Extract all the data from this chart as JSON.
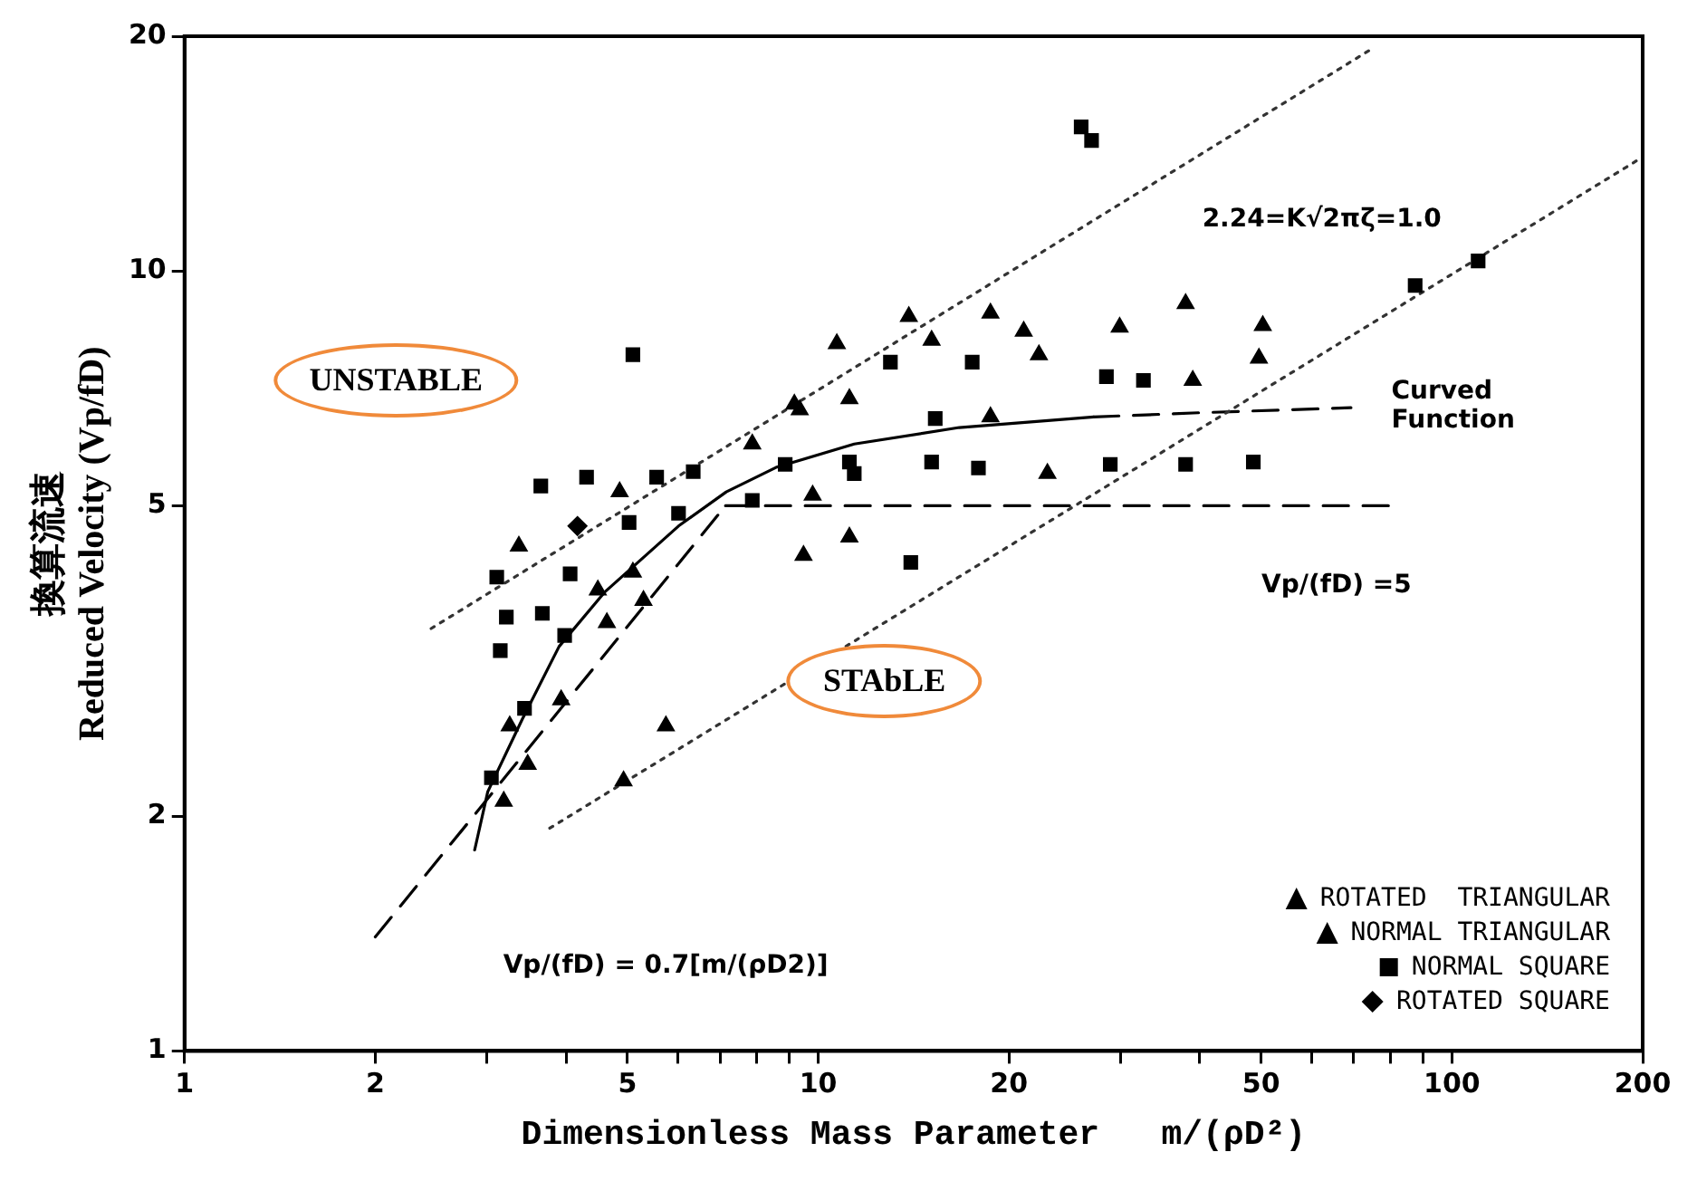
{
  "chart_data": {
    "type": "scatter",
    "xlabel": "Dimensionless Mass Parameter   m/(ρD²)",
    "ylabel": "換算流速\nReduced Velocity (Vp/fD)",
    "log": "xy",
    "xlim": [
      1,
      200
    ],
    "ylim": [
      1,
      20
    ],
    "xticks": [
      1,
      2,
      {
        "value": 3,
        "label": null
      },
      {
        "value": 4,
        "label": null
      },
      5,
      {
        "value": 6,
        "label": null
      },
      {
        "value": 7,
        "label": null
      },
      {
        "value": 8,
        "label": null
      },
      {
        "value": 9,
        "label": null
      },
      10,
      20,
      {
        "value": 30,
        "label": null
      },
      {
        "value": 40,
        "label": null
      },
      50,
      {
        "value": 60,
        "label": null
      },
      {
        "value": 70,
        "label": null
      },
      {
        "value": 80,
        "label": null
      },
      {
        "value": 90,
        "label": null
      },
      100,
      200
    ],
    "yticks": [
      1,
      2,
      5,
      10,
      20
    ],
    "grid": false,
    "legend": "bottom right",
    "series": [
      {
        "name": "ROTATED  TRIANGULAR",
        "color": "#000000",
        "marker": "triangle",
        "x": [
          3.19,
          3.48,
          3.93,
          4.64,
          5.3,
          5.75,
          4.93,
          9.48,
          11.2,
          9.8,
          18.7,
          23,
          39,
          49.6,
          13.9
        ],
        "values": [
          2.09,
          2.33,
          2.82,
          3.54,
          3.78,
          2.61,
          2.22,
          4.32,
          4.56,
          5.16,
          6.5,
          5.5,
          7.24,
          7.73,
          8.74
        ]
      },
      {
        "name": "NORMAL TRIANGULAR",
        "color": "#000000",
        "marker": "triangle",
        "x": [
          18.7,
          21.1,
          22.3,
          29.9,
          38,
          50.3,
          10.7,
          15.1,
          9.17,
          7.87,
          9.35,
          5.1,
          4.49,
          3.26,
          3.37,
          4.86,
          11.2
        ],
        "values": [
          8.83,
          8.37,
          7.81,
          8.47,
          9.08,
          8.51,
          8.07,
          8.15,
          6.75,
          6.0,
          6.64,
          4.11,
          3.9,
          2.61,
          4.44,
          5.21,
          6.86
        ]
      },
      {
        "name": "NORMAL SQUARE",
        "color": "#000000",
        "marker": "square",
        "x": [
          3.11,
          3.22,
          3.67,
          4.06,
          3.98,
          3.15,
          3.44,
          3.05,
          5.03,
          5.56,
          6.35,
          6.02,
          7.87,
          11.4,
          3.65,
          4.31,
          5.1,
          15.3,
          15.1,
          17.9,
          28.9,
          38,
          48.6,
          11.2,
          8.87,
          28.5,
          32.6,
          87.5,
          110,
          13,
          17.5,
          14,
          26,
          27
        ],
        "values": [
          4.05,
          3.6,
          3.64,
          4.09,
          3.41,
          3.26,
          2.75,
          2.24,
          4.76,
          5.44,
          5.53,
          4.89,
          5.08,
          5.5,
          5.3,
          5.44,
          7.81,
          6.47,
          5.69,
          5.59,
          5.65,
          5.65,
          5.69,
          5.69,
          5.65,
          7.32,
          7.24,
          9.58,
          10.3,
          7.64,
          7.64,
          4.23,
          15.3,
          14.7
        ]
      },
      {
        "name": "ROTATED SQUARE",
        "color": "#000000",
        "marker": "diamond",
        "x": [
          4.17
        ],
        "values": [
          4.71
        ]
      },
      {
        "type": "line",
        "color": "#333333",
        "marker": "none",
        "line_style": "dotted",
        "x": [
          2.45,
          75
        ],
        "values": [
          3.48,
          19.3
        ]
      },
      {
        "type": "line",
        "color": "#333333",
        "marker": "none",
        "line_style": "dotted",
        "x": [
          3.77,
          200
        ],
        "values": [
          1.93,
          14
        ]
      },
      {
        "type": "line",
        "color": "#000000",
        "marker": "none",
        "line_style": "dashed",
        "x": [
          2,
          7.14
        ],
        "values": [
          1.4,
          5
        ]
      },
      {
        "type": "line",
        "color": "#000000",
        "marker": "none",
        "line_style": "dashed",
        "x": [
          7.14,
          80
        ],
        "values": [
          5,
          5
        ]
      },
      {
        "type": "line",
        "color": "#000000",
        "marker": "none",
        "line_style": "solid",
        "x": [
          2.87,
          3.01,
          3.41,
          3.9,
          4.61,
          6.02,
          7.16,
          8.58,
          11.4,
          16.7,
          27.2
        ],
        "values": [
          1.81,
          2.15,
          2.66,
          3.3,
          3.88,
          4.71,
          5.21,
          5.6,
          6.0,
          6.3,
          6.5
        ]
      },
      {
        "type": "line",
        "color": "#000000",
        "marker": "none",
        "line_style": "dashed",
        "x": [
          27.2,
          39.8,
          69.3
        ],
        "values": [
          6.5,
          6.58,
          6.68
        ]
      }
    ],
    "annotations": [
      "UNSTABLE",
      "STAbLE",
      "Curved\nFunction",
      "Vp/(fD) =5",
      "2.24=K√2πζ=1.0",
      "Vp/(fD) = 0.7[m/(ρD2)]"
    ]
  }
}
